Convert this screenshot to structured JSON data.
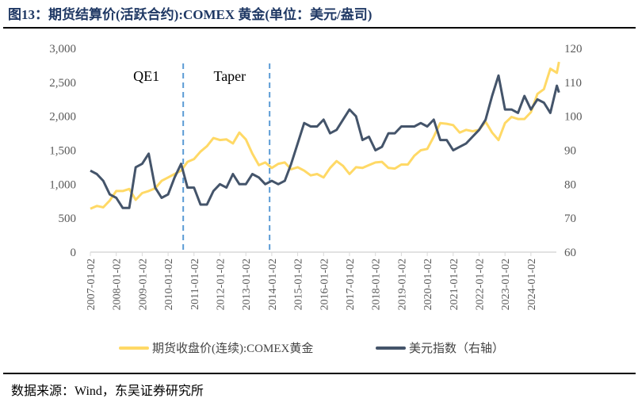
{
  "title": "图13：期货结算价(活跃合约):COMEX 黄金(单位：美元/盎司)",
  "source": "数据来源：Wind，东吴证券研究所",
  "chart_data": {
    "type": "line",
    "title": "",
    "xlabel": "",
    "ylabel": "",
    "y_left": {
      "range": [
        0,
        3000
      ],
      "ticks": [
        "0",
        "500",
        "1,000",
        "1,500",
        "2,000",
        "2,500",
        "3,000"
      ]
    },
    "y_right": {
      "range": [
        60,
        120
      ],
      "ticks": [
        "60",
        "70",
        "80",
        "90",
        "100",
        "110",
        "120"
      ]
    },
    "x_ticks": [
      "2007-01-02",
      "2008-01-02",
      "2009-01-02",
      "2010-01-02",
      "2011-01-02",
      "2012-01-02",
      "2013-01-02",
      "2014-01-02",
      "2015-01-02",
      "2016-01-02",
      "2017-01-02",
      "2018-01-02",
      "2019-01-02",
      "2020-01-02",
      "2021-01-02",
      "2022-01-02",
      "2023-01-02",
      "2024-01-02"
    ],
    "grid": false,
    "legend": "bottom",
    "annotations": [
      {
        "label": "QE1",
        "line_date": "2010-08"
      },
      {
        "label": "Taper",
        "line_date": "2013-12"
      }
    ],
    "annotation_line_color": "#5b9bd5",
    "x": [
      "2007-01",
      "2007-04",
      "2007-07",
      "2007-10",
      "2008-01",
      "2008-04",
      "2008-07",
      "2008-10",
      "2009-01",
      "2009-04",
      "2009-07",
      "2009-10",
      "2010-01",
      "2010-04",
      "2010-07",
      "2010-10",
      "2011-01",
      "2011-04",
      "2011-07",
      "2011-10",
      "2012-01",
      "2012-04",
      "2012-07",
      "2012-10",
      "2013-01",
      "2013-04",
      "2013-07",
      "2013-10",
      "2014-01",
      "2014-04",
      "2014-07",
      "2014-10",
      "2015-01",
      "2015-04",
      "2015-07",
      "2015-10",
      "2016-01",
      "2016-04",
      "2016-07",
      "2016-10",
      "2017-01",
      "2017-04",
      "2017-07",
      "2017-10",
      "2018-01",
      "2018-04",
      "2018-07",
      "2018-10",
      "2019-01",
      "2019-04",
      "2019-07",
      "2019-10",
      "2020-01",
      "2020-04",
      "2020-07",
      "2020-10",
      "2021-01",
      "2021-04",
      "2021-07",
      "2021-10",
      "2022-01",
      "2022-04",
      "2022-07",
      "2022-10",
      "2023-01",
      "2023-04",
      "2023-07",
      "2023-10",
      "2024-01",
      "2024-04",
      "2024-07",
      "2024-10",
      "2025-01",
      "2025-02"
    ],
    "series": [
      {
        "name": "期货收盘价(连续):COMEX黄金",
        "axis": "left",
        "color": "#ffd966",
        "values": [
          640,
          680,
          660,
          760,
          900,
          900,
          930,
          770,
          870,
          900,
          940,
          1050,
          1100,
          1150,
          1200,
          1330,
          1370,
          1480,
          1560,
          1680,
          1650,
          1660,
          1600,
          1760,
          1660,
          1450,
          1280,
          1320,
          1240,
          1300,
          1320,
          1220,
          1250,
          1200,
          1130,
          1150,
          1100,
          1240,
          1340,
          1270,
          1150,
          1250,
          1240,
          1280,
          1320,
          1330,
          1240,
          1230,
          1290,
          1290,
          1420,
          1500,
          1520,
          1700,
          1900,
          1890,
          1870,
          1760,
          1800,
          1780,
          1800,
          1920,
          1760,
          1650,
          1900,
          1990,
          1960,
          1960,
          2060,
          2330,
          2400,
          2700,
          2640,
          2800
        ]
      },
      {
        "name": "美元指数（右轴）",
        "axis": "right",
        "color": "#44546a",
        "values": [
          84,
          83,
          81,
          77,
          76,
          73,
          73,
          85,
          86,
          89,
          79,
          76,
          77,
          82,
          86,
          79,
          79,
          74,
          74,
          78,
          80,
          79,
          83,
          80,
          80,
          83,
          82,
          80,
          81,
          80,
          81,
          86,
          92,
          98,
          97,
          97,
          99,
          95,
          96,
          99,
          102,
          100,
          93,
          94,
          90,
          91,
          95,
          95,
          97,
          97,
          97,
          98,
          97,
          99,
          93,
          93,
          90,
          91,
          92,
          94,
          96,
          99,
          106,
          112,
          102,
          102,
          101,
          106,
          102,
          105,
          104,
          101,
          109,
          107
        ]
      }
    ]
  }
}
